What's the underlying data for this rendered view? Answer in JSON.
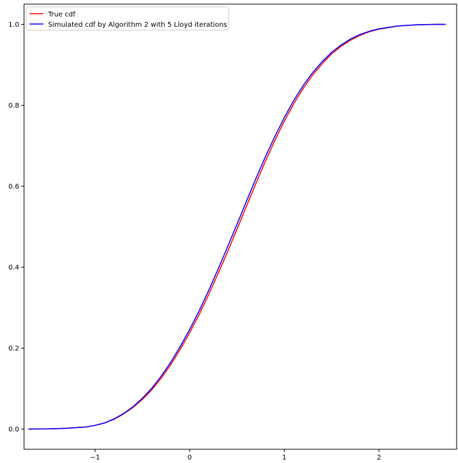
{
  "chart_data": {
    "type": "line",
    "title": "",
    "xlabel": "",
    "ylabel": "",
    "xlim": [
      -1.75,
      2.82
    ],
    "ylim": [
      -0.05,
      1.05
    ],
    "xticks": [
      -1,
      0,
      1,
      2
    ],
    "xtick_labels": [
      "−1",
      "0",
      "1",
      "2"
    ],
    "yticks": [
      0.0,
      0.2,
      0.4,
      0.6,
      0.8,
      1.0
    ],
    "ytick_labels": [
      "0.0",
      "0.2",
      "0.4",
      "0.6",
      "0.8",
      "1.0"
    ],
    "grid": false,
    "legend_position": "top-left",
    "series": [
      {
        "name": "True cdf",
        "color": "#ff0000",
        "x": [
          -1.7,
          -1.5,
          -1.3,
          -1.1,
          -1.0,
          -0.9,
          -0.8,
          -0.7,
          -0.6,
          -0.5,
          -0.4,
          -0.3,
          -0.2,
          -0.1,
          0.0,
          0.1,
          0.2,
          0.3,
          0.4,
          0.5,
          0.6,
          0.7,
          0.8,
          0.9,
          1.0,
          1.1,
          1.2,
          1.3,
          1.4,
          1.5,
          1.6,
          1.7,
          1.8,
          1.9,
          2.0,
          2.2,
          2.4,
          2.6,
          2.7
        ],
        "y": [
          0.0,
          0.0005,
          0.002,
          0.005,
          0.009,
          0.015,
          0.024,
          0.037,
          0.053,
          0.073,
          0.097,
          0.126,
          0.159,
          0.197,
          0.238,
          0.283,
          0.332,
          0.384,
          0.438,
          0.494,
          0.551,
          0.607,
          0.662,
          0.713,
          0.761,
          0.804,
          0.842,
          0.875,
          0.903,
          0.927,
          0.946,
          0.961,
          0.973,
          0.982,
          0.988,
          0.996,
          0.999,
          1.0,
          1.0
        ]
      },
      {
        "name": "Simulated cdf by Algorithm 2 with 5 Lloyd iterations",
        "color": "#0000ff",
        "x": [
          -1.7,
          -1.5,
          -1.3,
          -1.1,
          -1.0,
          -0.9,
          -0.8,
          -0.7,
          -0.6,
          -0.5,
          -0.4,
          -0.3,
          -0.2,
          -0.1,
          0.0,
          0.1,
          0.2,
          0.3,
          0.4,
          0.5,
          0.6,
          0.7,
          0.8,
          0.9,
          1.0,
          1.1,
          1.2,
          1.3,
          1.4,
          1.5,
          1.6,
          1.7,
          1.8,
          1.9,
          2.0,
          2.2,
          2.4,
          2.6,
          2.7
        ],
        "y": [
          0.0,
          0.0005,
          0.002,
          0.005,
          0.009,
          0.015,
          0.025,
          0.038,
          0.055,
          0.076,
          0.101,
          0.131,
          0.165,
          0.204,
          0.246,
          0.292,
          0.342,
          0.395,
          0.45,
          0.506,
          0.563,
          0.619,
          0.673,
          0.723,
          0.77,
          0.812,
          0.849,
          0.881,
          0.908,
          0.931,
          0.949,
          0.964,
          0.975,
          0.983,
          0.989,
          0.996,
          0.999,
          1.0,
          1.0
        ]
      }
    ]
  }
}
